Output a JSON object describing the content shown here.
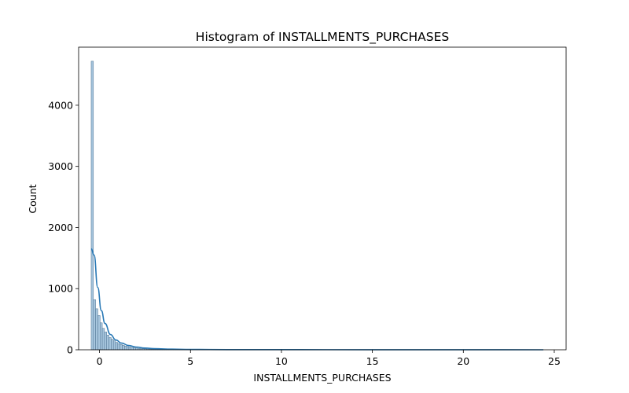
{
  "chart_data": {
    "type": "bar",
    "title": "Histogram of INSTALLMENTS_PURCHASES",
    "xlabel": "INSTALLMENTS_PURCHASES",
    "ylabel": "Count",
    "xlim": [
      -1.15,
      25.65
    ],
    "ylim": [
      0,
      4950
    ],
    "xticks": [
      0,
      5,
      10,
      15,
      20,
      25
    ],
    "yticks": [
      0,
      1000,
      2000,
      3000,
      4000
    ],
    "grid": false,
    "bin_start": -0.46,
    "bin_width": 0.122,
    "counts": [
      4720,
      820,
      670,
      560,
      440,
      350,
      290,
      240,
      200,
      170,
      145,
      120,
      100,
      85,
      72,
      60,
      52,
      45,
      38,
      32,
      28,
      24,
      20,
      17,
      15,
      13,
      11,
      10,
      9,
      8,
      7,
      6,
      6,
      5,
      5,
      4,
      4,
      4,
      3,
      3,
      3,
      3,
      2,
      2,
      2,
      2,
      2,
      2,
      2,
      1,
      1,
      1,
      1,
      1,
      1,
      1,
      1,
      1,
      1,
      1
    ],
    "kde": {
      "x": [
        -0.46,
        -0.3,
        -0.1,
        0.1,
        0.3,
        0.6,
        0.9,
        1.2,
        1.6,
        2.0,
        2.5,
        3.0,
        4.0,
        5.0,
        7.0,
        10.0,
        15.0,
        20.0,
        24.4
      ],
      "y": [
        1650,
        1550,
        1020,
        640,
        430,
        250,
        160,
        110,
        70,
        45,
        28,
        18,
        10,
        6,
        3,
        2,
        1,
        1,
        0
      ]
    },
    "colors": {
      "bar_fill": "#a7c6de",
      "bar_edge": "#4a6f8f",
      "kde_line": "#2878b5"
    }
  }
}
